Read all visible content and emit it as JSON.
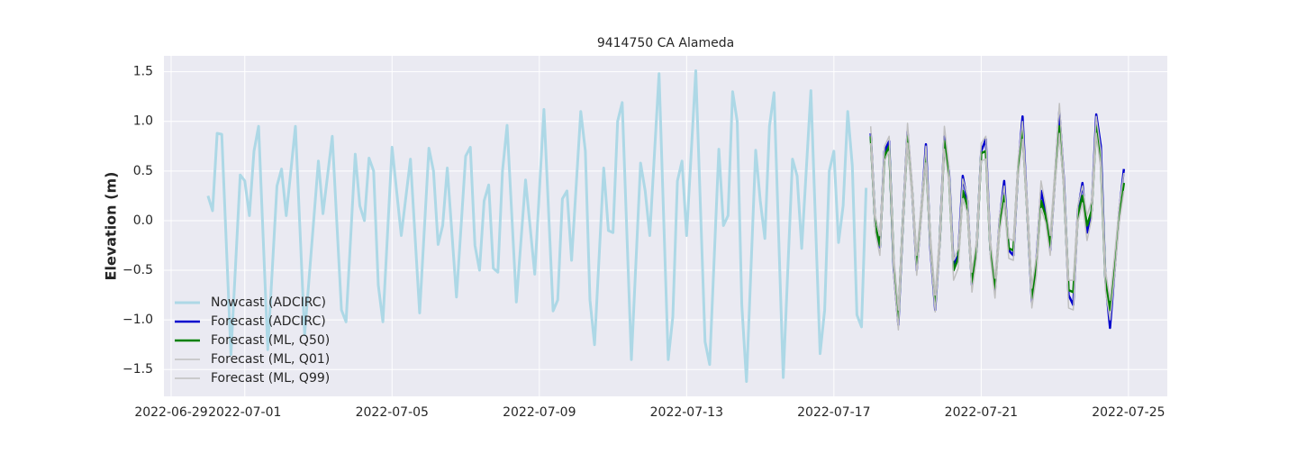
{
  "chart_data": {
    "type": "line",
    "title": "9414750 CA Alameda",
    "ylabel": "Elevation (m)",
    "xlim": [
      "2022-06-28 19:18",
      "2022-07-26 01:19"
    ],
    "xticks": [
      "2022-06-29",
      "2022-07-01",
      "2022-07-05",
      "2022-07-09",
      "2022-07-13",
      "2022-07-17",
      "2022-07-21",
      "2022-07-25"
    ],
    "ylim": [
      -1.77,
      1.66
    ],
    "yticks": [
      {
        "value": -1.5,
        "label": "−1.5"
      },
      {
        "value": -1.0,
        "label": "−1.0"
      },
      {
        "value": -0.5,
        "label": "−0.5"
      },
      {
        "value": 0,
        "label": "0.0"
      },
      {
        "value": 0.5,
        "label": "0.5"
      },
      {
        "value": 1.0,
        "label": "1.0"
      },
      {
        "value": 1.5,
        "label": "1.5"
      }
    ],
    "grid": true,
    "legend": "lower left",
    "series": [
      {
        "name": "Nowcast (ADCIRC)",
        "color": "#add8e6",
        "width": 3,
        "x": [
          "2022-06-30 00:00",
          "2022-06-30 03:00",
          "2022-06-30 06:00",
          "2022-06-30 09:00",
          "2022-06-30 15:00",
          "2022-06-30 21:00",
          "2022-07-01 00:00",
          "2022-07-01 03:00",
          "2022-07-01 06:00",
          "2022-07-01 09:00",
          "2022-07-01 15:00",
          "2022-07-01 21:00",
          "2022-07-02 00:00",
          "2022-07-02 03:00",
          "2022-07-02 09:00",
          "2022-07-02 15:00",
          "2022-07-03 00:00",
          "2022-07-03 03:00",
          "2022-07-03 09:00",
          "2022-07-03 15:00",
          "2022-07-03 18:00",
          "2022-07-04 00:00",
          "2022-07-04 03:00",
          "2022-07-04 06:00",
          "2022-07-04 09:00",
          "2022-07-04 12:00",
          "2022-07-04 15:00",
          "2022-07-04 18:00",
          "2022-07-05 00:00",
          "2022-07-05 06:00",
          "2022-07-05 12:00",
          "2022-07-05 18:00",
          "2022-07-06 00:00",
          "2022-07-06 03:00",
          "2022-07-06 06:00",
          "2022-07-06 09:00",
          "2022-07-06 12:00",
          "2022-07-06 18:00",
          "2022-07-07 00:00",
          "2022-07-07 03:00",
          "2022-07-07 06:00",
          "2022-07-07 09:00",
          "2022-07-07 12:00",
          "2022-07-07 15:00",
          "2022-07-07 18:00",
          "2022-07-07 21:00",
          "2022-07-08 00:00",
          "2022-07-08 03:00",
          "2022-07-08 09:00",
          "2022-07-08 15:00",
          "2022-07-08 21:00",
          "2022-07-09 03:00",
          "2022-07-09 09:00",
          "2022-07-09 12:00",
          "2022-07-09 15:00",
          "2022-07-09 18:00",
          "2022-07-09 21:00",
          "2022-07-10 03:00",
          "2022-07-10 06:00",
          "2022-07-10 09:00",
          "2022-07-10 12:00",
          "2022-07-10 18:00",
          "2022-07-10 21:00",
          "2022-07-11 00:00",
          "2022-07-11 03:00",
          "2022-07-11 06:00",
          "2022-07-11 12:00",
          "2022-07-11 18:00",
          "2022-07-11 21:00",
          "2022-07-12 00:00",
          "2022-07-12 06:00",
          "2022-07-12 12:00",
          "2022-07-12 15:00",
          "2022-07-12 18:00",
          "2022-07-12 21:00",
          "2022-07-13 00:00",
          "2022-07-13 06:00",
          "2022-07-13 12:00",
          "2022-07-13 15:00",
          "2022-07-13 21:00",
          "2022-07-14 00:00",
          "2022-07-14 03:00",
          "2022-07-14 06:00",
          "2022-07-14 09:00",
          "2022-07-14 12:00",
          "2022-07-14 15:00",
          "2022-07-14 21:00",
          "2022-07-15 00:00",
          "2022-07-15 03:00",
          "2022-07-15 06:00",
          "2022-07-15 09:00",
          "2022-07-15 15:00",
          "2022-07-15 21:00",
          "2022-07-16 00:00",
          "2022-07-16 03:00",
          "2022-07-16 09:00",
          "2022-07-16 15:00",
          "2022-07-16 18:00",
          "2022-07-16 21:00",
          "2022-07-17 00:00",
          "2022-07-17 03:00",
          "2022-07-17 06:00",
          "2022-07-17 09:00",
          "2022-07-17 12:00",
          "2022-07-17 15:00",
          "2022-07-17 18:00",
          "2022-07-17 21:00"
        ],
        "values": [
          0.25,
          0.1,
          0.88,
          0.87,
          -1.35,
          0.46,
          0.4,
          0.05,
          0.7,
          0.95,
          -1.3,
          0.35,
          0.52,
          0.05,
          0.95,
          -1.15,
          0.6,
          0.07,
          0.85,
          -0.9,
          -1.02,
          0.67,
          0.15,
          0.0,
          0.63,
          0.5,
          -0.65,
          -1.02,
          0.74,
          -0.15,
          0.62,
          -0.93,
          0.73,
          0.5,
          -0.24,
          -0.05,
          0.53,
          -0.77,
          0.65,
          0.74,
          -0.25,
          -0.5,
          0.2,
          0.36,
          -0.48,
          -0.52,
          0.5,
          0.96,
          -0.82,
          0.41,
          -0.54,
          1.12,
          -0.91,
          -0.8,
          0.22,
          0.3,
          -0.4,
          1.1,
          0.7,
          -0.8,
          -1.25,
          0.53,
          -0.1,
          -0.12,
          1.0,
          1.19,
          -1.4,
          0.58,
          0.3,
          -0.15,
          1.48,
          -1.4,
          -0.97,
          0.4,
          0.6,
          -0.15,
          1.51,
          -1.22,
          -1.45,
          0.72,
          -0.05,
          0.05,
          1.3,
          1.0,
          -0.85,
          -1.62,
          0.71,
          0.2,
          -0.18,
          0.95,
          1.29,
          -1.58,
          0.62,
          0.45,
          -0.28,
          1.31,
          -1.34,
          -0.9,
          0.5,
          0.7,
          -0.22,
          0.15,
          1.1,
          0.55,
          -0.95,
          -1.07,
          0.33
        ]
      },
      {
        "name": "Forecast (ADCIRC)",
        "color": "#0000cd",
        "width": 2.5,
        "x": [
          "2022-07-18 00:00",
          "2022-07-18 03:00",
          "2022-07-18 06:00",
          "2022-07-18 09:00",
          "2022-07-18 12:00",
          "2022-07-18 15:00",
          "2022-07-18 18:00",
          "2022-07-18 21:00",
          "2022-07-19 00:00",
          "2022-07-19 03:00",
          "2022-07-19 06:00",
          "2022-07-19 09:00",
          "2022-07-19 12:00",
          "2022-07-19 15:00",
          "2022-07-19 18:00",
          "2022-07-19 21:00",
          "2022-07-20 00:00",
          "2022-07-20 03:00",
          "2022-07-20 06:00",
          "2022-07-20 09:00",
          "2022-07-20 12:00",
          "2022-07-20 15:00",
          "2022-07-20 18:00",
          "2022-07-20 21:00",
          "2022-07-21 00:00",
          "2022-07-21 03:00",
          "2022-07-21 06:00",
          "2022-07-21 09:00",
          "2022-07-21 12:00",
          "2022-07-21 15:00",
          "2022-07-21 18:00",
          "2022-07-21 21:00",
          "2022-07-22 00:00",
          "2022-07-22 03:00",
          "2022-07-22 06:00",
          "2022-07-22 09:00",
          "2022-07-22 12:00",
          "2022-07-22 15:00",
          "2022-07-22 18:00",
          "2022-07-22 21:00",
          "2022-07-23 00:00",
          "2022-07-23 03:00",
          "2022-07-23 06:00",
          "2022-07-23 09:00",
          "2022-07-23 12:00",
          "2022-07-23 15:00",
          "2022-07-23 18:00",
          "2022-07-23 21:00",
          "2022-07-24 00:00",
          "2022-07-24 03:00",
          "2022-07-24 06:00",
          "2022-07-24 09:00",
          "2022-07-24 12:00",
          "2022-07-24 15:00",
          "2022-07-24 18:00",
          "2022-07-24 21:00"
        ],
        "values": [
          0.88,
          -0.05,
          -0.27,
          0.7,
          0.8,
          -0.5,
          -1.05,
          0,
          0.9,
          0.3,
          -0.5,
          0.1,
          0.77,
          -0.3,
          -0.9,
          -0.2,
          0.85,
          0.5,
          -0.45,
          -0.35,
          0.45,
          0.2,
          -0.65,
          -0.3,
          0.7,
          0.82,
          -0.3,
          -0.7,
          0,
          0.4,
          -0.3,
          -0.35,
          0.5,
          1.05,
          0.1,
          -0.82,
          -0.4,
          0.3,
          0.1,
          -0.3,
          0.4,
          1.1,
          0.4,
          -0.75,
          -0.85,
          0.1,
          0.38,
          -0.12,
          0.1,
          1.07,
          0.75,
          -0.6,
          -1.08,
          -0.5,
          0.1,
          0.52
        ]
      },
      {
        "name": "Forecast (ML, Q50)",
        "color": "#008000",
        "width": 2.5,
        "x": [
          "2022-07-18 00:00",
          "2022-07-18 03:00",
          "2022-07-18 06:00",
          "2022-07-18 09:00",
          "2022-07-18 12:00",
          "2022-07-18 15:00",
          "2022-07-18 18:00",
          "2022-07-18 21:00",
          "2022-07-19 00:00",
          "2022-07-19 03:00",
          "2022-07-19 06:00",
          "2022-07-19 09:00",
          "2022-07-19 12:00",
          "2022-07-19 15:00",
          "2022-07-19 18:00",
          "2022-07-19 21:00",
          "2022-07-20 00:00",
          "2022-07-20 03:00",
          "2022-07-20 06:00",
          "2022-07-20 09:00",
          "2022-07-20 12:00",
          "2022-07-20 15:00",
          "2022-07-20 18:00",
          "2022-07-20 21:00",
          "2022-07-21 00:00",
          "2022-07-21 03:00",
          "2022-07-21 06:00",
          "2022-07-21 09:00",
          "2022-07-21 12:00",
          "2022-07-21 15:00",
          "2022-07-21 18:00",
          "2022-07-21 21:00",
          "2022-07-22 00:00",
          "2022-07-22 03:00",
          "2022-07-22 06:00",
          "2022-07-22 09:00",
          "2022-07-22 12:00",
          "2022-07-22 15:00",
          "2022-07-22 18:00",
          "2022-07-22 21:00",
          "2022-07-23 00:00",
          "2022-07-23 03:00",
          "2022-07-23 06:00",
          "2022-07-23 09:00",
          "2022-07-23 12:00",
          "2022-07-23 15:00",
          "2022-07-23 18:00",
          "2022-07-23 21:00",
          "2022-07-24 00:00",
          "2022-07-24 03:00",
          "2022-07-24 06:00",
          "2022-07-24 09:00",
          "2022-07-24 12:00",
          "2022-07-24 15:00",
          "2022-07-24 18:00",
          "2022-07-24 21:00"
        ],
        "values": [
          0.85,
          -0.05,
          -0.25,
          0.65,
          0.75,
          -0.45,
          -1.0,
          0.0,
          0.85,
          0.3,
          -0.45,
          0.1,
          0.65,
          -0.25,
          -0.85,
          -0.2,
          0.8,
          0.45,
          -0.5,
          -0.38,
          0.3,
          0.15,
          -0.62,
          -0.3,
          0.68,
          0.7,
          -0.3,
          -0.68,
          -0.05,
          0.25,
          -0.28,
          -0.3,
          0.5,
          0.9,
          0.1,
          -0.78,
          -0.45,
          0.2,
          0.05,
          -0.25,
          0.4,
          0.95,
          0.35,
          -0.7,
          -0.72,
          0.05,
          0.25,
          -0.05,
          0.1,
          0.95,
          0.6,
          -0.6,
          -0.9,
          -0.45,
          0.05,
          0.38
        ]
      },
      {
        "name": "Forecast (ML, Q01)",
        "color": "#c0c0c0",
        "width": 1.5,
        "x": [
          "2022-07-18 00:00",
          "2022-07-18 03:00",
          "2022-07-18 06:00",
          "2022-07-18 09:00",
          "2022-07-18 12:00",
          "2022-07-18 15:00",
          "2022-07-18 18:00",
          "2022-07-18 21:00",
          "2022-07-19 00:00",
          "2022-07-19 03:00",
          "2022-07-19 06:00",
          "2022-07-19 09:00",
          "2022-07-19 12:00",
          "2022-07-19 15:00",
          "2022-07-19 18:00",
          "2022-07-19 21:00",
          "2022-07-20 00:00",
          "2022-07-20 03:00",
          "2022-07-20 06:00",
          "2022-07-20 09:00",
          "2022-07-20 12:00",
          "2022-07-20 15:00",
          "2022-07-20 18:00",
          "2022-07-20 21:00",
          "2022-07-21 00:00",
          "2022-07-21 03:00",
          "2022-07-21 06:00",
          "2022-07-21 09:00",
          "2022-07-21 12:00",
          "2022-07-21 15:00",
          "2022-07-21 18:00",
          "2022-07-21 21:00",
          "2022-07-22 00:00",
          "2022-07-22 03:00",
          "2022-07-22 06:00",
          "2022-07-22 09:00",
          "2022-07-22 12:00",
          "2022-07-22 15:00",
          "2022-07-22 18:00",
          "2022-07-22 21:00",
          "2022-07-23 00:00",
          "2022-07-23 03:00",
          "2022-07-23 06:00",
          "2022-07-23 09:00",
          "2022-07-23 12:00",
          "2022-07-23 15:00",
          "2022-07-23 18:00",
          "2022-07-23 21:00",
          "2022-07-24 00:00",
          "2022-07-24 03:00",
          "2022-07-24 06:00",
          "2022-07-24 09:00",
          "2022-07-24 12:00",
          "2022-07-24 15:00",
          "2022-07-24 18:00",
          "2022-07-24 21:00"
        ],
        "values": [
          0.78,
          -0.12,
          -0.35,
          0.6,
          0.7,
          -0.55,
          -1.1,
          -0.08,
          0.78,
          0.22,
          -0.55,
          0.02,
          0.58,
          -0.33,
          -0.92,
          -0.28,
          0.72,
          0.38,
          -0.6,
          -0.48,
          0.22,
          0.08,
          -0.72,
          -0.38,
          0.6,
          0.62,
          -0.38,
          -0.78,
          -0.12,
          0.18,
          -0.38,
          -0.4,
          0.42,
          0.82,
          0.02,
          -0.88,
          -0.55,
          0.12,
          -0.02,
          -0.35,
          0.32,
          0.88,
          0.28,
          -0.88,
          -0.9,
          -0.02,
          0.18,
          -0.2,
          0.02,
          0.88,
          0.52,
          -0.7,
          -1.0,
          -0.55,
          -0.02,
          0.3
        ]
      },
      {
        "name": "Forecast (ML, Q99)",
        "color": "#c0c0c0",
        "width": 1.5,
        "x": [
          "2022-07-18 00:00",
          "2022-07-18 03:00",
          "2022-07-18 06:00",
          "2022-07-18 09:00",
          "2022-07-18 12:00",
          "2022-07-18 15:00",
          "2022-07-18 18:00",
          "2022-07-18 21:00",
          "2022-07-19 00:00",
          "2022-07-19 03:00",
          "2022-07-19 06:00",
          "2022-07-19 09:00",
          "2022-07-19 12:00",
          "2022-07-19 15:00",
          "2022-07-19 18:00",
          "2022-07-19 21:00",
          "2022-07-20 00:00",
          "2022-07-20 03:00",
          "2022-07-20 06:00",
          "2022-07-20 09:00",
          "2022-07-20 12:00",
          "2022-07-20 15:00",
          "2022-07-20 18:00",
          "2022-07-20 21:00",
          "2022-07-21 00:00",
          "2022-07-21 03:00",
          "2022-07-21 06:00",
          "2022-07-21 09:00",
          "2022-07-21 12:00",
          "2022-07-21 15:00",
          "2022-07-21 18:00",
          "2022-07-21 21:00",
          "2022-07-22 00:00",
          "2022-07-22 03:00",
          "2022-07-22 06:00",
          "2022-07-22 09:00",
          "2022-07-22 12:00",
          "2022-07-22 15:00",
          "2022-07-22 18:00",
          "2022-07-22 21:00",
          "2022-07-23 00:00",
          "2022-07-23 03:00",
          "2022-07-23 06:00",
          "2022-07-23 09:00",
          "2022-07-23 12:00",
          "2022-07-23 15:00",
          "2022-07-23 18:00",
          "2022-07-23 21:00",
          "2022-07-24 00:00",
          "2022-07-24 03:00",
          "2022-07-24 06:00",
          "2022-07-24 09:00",
          "2022-07-24 12:00",
          "2022-07-24 15:00",
          "2022-07-24 18:00",
          "2022-07-24 21:00"
        ],
        "values": [
          0.95,
          0.05,
          -0.15,
          0.75,
          0.85,
          -0.35,
          -0.9,
          0.08,
          0.98,
          0.38,
          -0.35,
          0.18,
          0.75,
          -0.15,
          -0.75,
          -0.12,
          0.95,
          0.55,
          -0.4,
          -0.28,
          0.42,
          0.25,
          -0.52,
          -0.2,
          0.78,
          0.85,
          -0.2,
          -0.58,
          0.05,
          0.35,
          -0.18,
          -0.2,
          0.6,
          1.0,
          0.2,
          -0.68,
          -0.35,
          0.4,
          0.15,
          -0.15,
          0.5,
          1.18,
          0.45,
          -0.6,
          -0.6,
          0.15,
          0.35,
          0.05,
          0.2,
          1.05,
          0.7,
          -0.5,
          -0.8,
          -0.35,
          0.15,
          0.48
        ]
      }
    ]
  }
}
